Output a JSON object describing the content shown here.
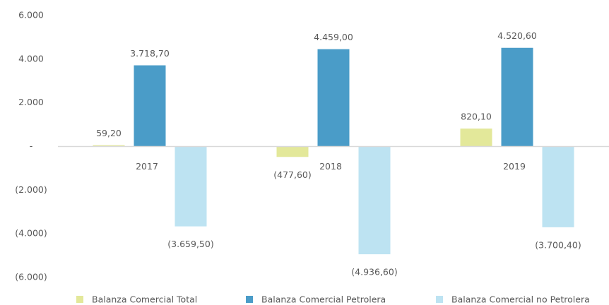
{
  "chart_data": {
    "type": "bar",
    "categories": [
      "2017",
      "2018",
      "2019"
    ],
    "series": [
      {
        "name": "Balanza Comercial Total",
        "color": "#e3e89a",
        "values": [
          59.2,
          -477.6,
          820.1
        ],
        "value_labels": [
          "59,20",
          "(477,60)",
          "820,10"
        ]
      },
      {
        "name": "Balanza Comercial Petrolera",
        "color": "#4a9cc8",
        "values": [
          3718.7,
          4459.0,
          4520.6
        ],
        "value_labels": [
          "3.718,70",
          "4.459,00",
          "4.520,60"
        ]
      },
      {
        "name": "Balanza Comercial no Petrolera",
        "color": "#bde3f2",
        "values": [
          -3659.5,
          -4936.6,
          -3700.4
        ],
        "value_labels": [
          "(3.659,50)",
          "(4.936,60)",
          "(3.700,40)"
        ]
      }
    ],
    "ylim": [
      -6000,
      6000
    ],
    "yticks": [
      {
        "value": 6000,
        "label": "6.000"
      },
      {
        "value": 4000,
        "label": "4.000"
      },
      {
        "value": 2000,
        "label": "2.000"
      },
      {
        "value": 0,
        "label": "-"
      },
      {
        "value": -2000,
        "label": "(2.000)"
      },
      {
        "value": -4000,
        "label": "(4.000)"
      },
      {
        "value": -6000,
        "label": "(6.000)"
      }
    ],
    "legend": "bottom"
  }
}
